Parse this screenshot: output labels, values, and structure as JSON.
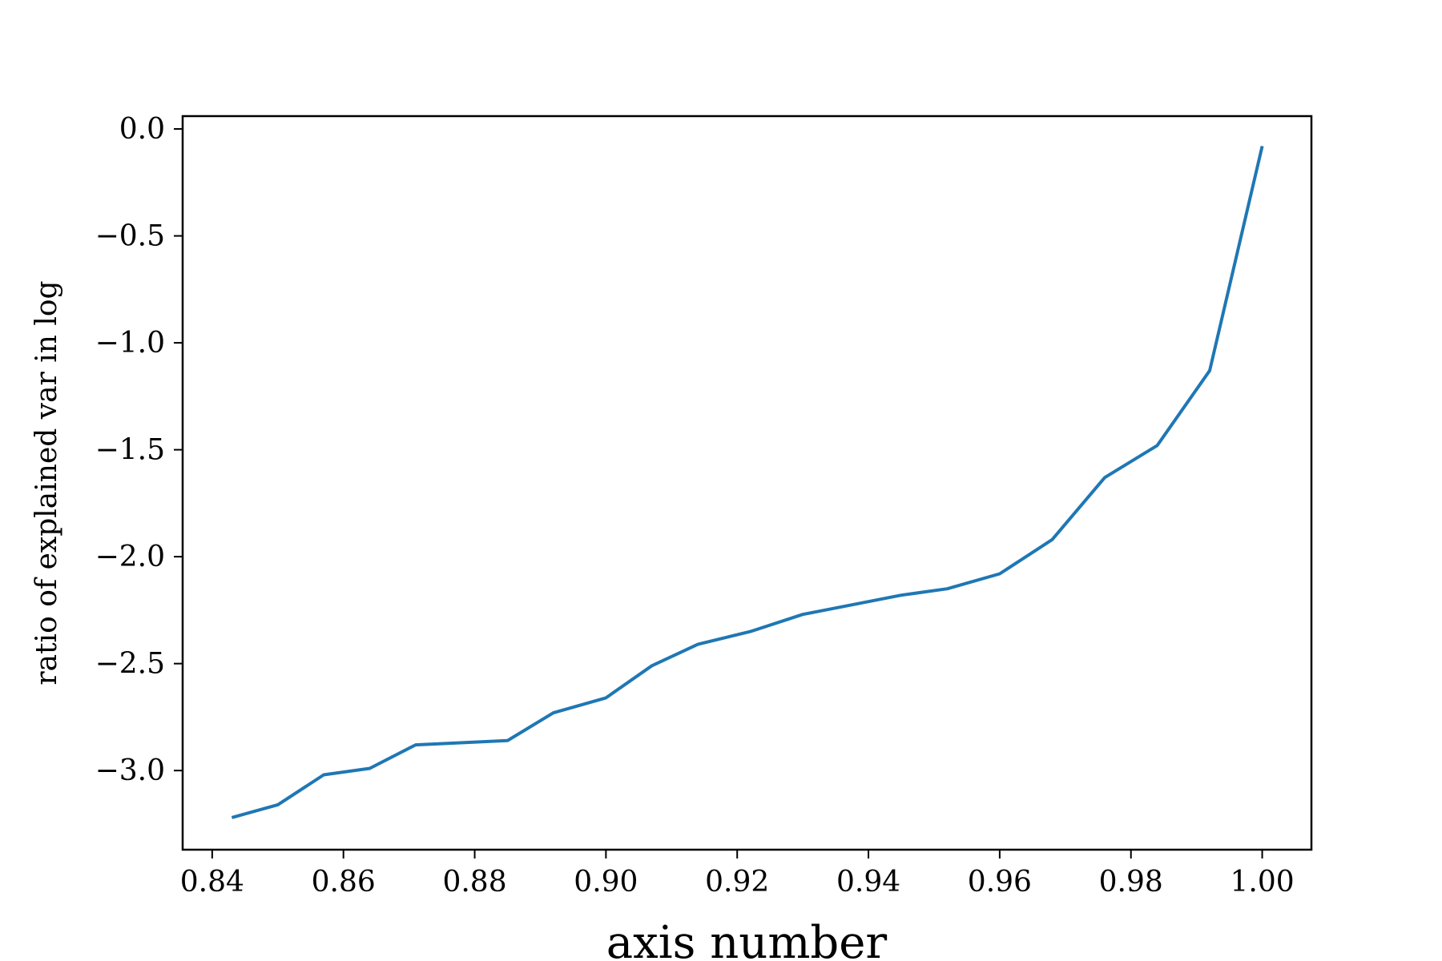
{
  "chart_data": {
    "type": "line",
    "title": "",
    "xlabel": "axis number",
    "ylabel": "ratio of explained var in log",
    "xlim": [
      0.8355,
      1.0075
    ],
    "ylim": [
      -3.37,
      0.06
    ],
    "grid": false,
    "legend": "none",
    "line_color": "#1f77b4",
    "x_ticks": [
      0.84,
      0.86,
      0.88,
      0.9,
      0.92,
      0.94,
      0.96,
      0.98,
      1.0
    ],
    "x_tick_labels": [
      "0.84",
      "0.86",
      "0.88",
      "0.90",
      "0.92",
      "0.94",
      "0.96",
      "0.98",
      "1.00"
    ],
    "y_ticks": [
      0.0,
      -0.5,
      -1.0,
      -1.5,
      -2.0,
      -2.5,
      -3.0
    ],
    "y_tick_labels": [
      "0.0",
      "−0.5",
      "−1.0",
      "−1.5",
      "−2.0",
      "−2.5",
      "−3.0"
    ],
    "series": [
      {
        "x": [
          0.843,
          0.85,
          0.857,
          0.864,
          0.871,
          0.885,
          0.892,
          0.9,
          0.907,
          0.914,
          0.922,
          0.93,
          0.945,
          0.952,
          0.96,
          0.968,
          0.976,
          0.984,
          0.992,
          1.0
        ],
        "y": [
          -3.22,
          -3.16,
          -3.02,
          -2.99,
          -2.88,
          -2.86,
          -2.73,
          -2.66,
          -2.51,
          -2.41,
          -2.35,
          -2.27,
          -2.18,
          -2.15,
          -2.08,
          -1.92,
          -1.63,
          -1.48,
          -1.13,
          -0.08
        ]
      }
    ]
  }
}
